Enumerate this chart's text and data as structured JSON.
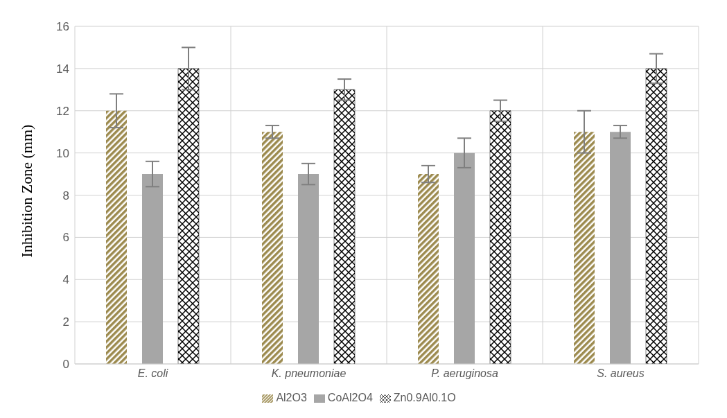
{
  "chart_data": {
    "type": "bar",
    "ylabel": "Inhibition Zone (mm)",
    "categories": [
      "E. coli",
      "K. pneumoniae",
      "P. aeruginosa",
      "S. aureus"
    ],
    "series": [
      {
        "name": "Al2O3",
        "color": "#9c8a4e",
        "values": [
          12,
          11,
          9,
          11
        ],
        "errors": [
          0.8,
          0.3,
          0.4,
          1
        ]
      },
      {
        "name": "CoAl2O4",
        "color": "#a6a6a6",
        "values": [
          9,
          9,
          10,
          11
        ],
        "errors": [
          0.6,
          0.5,
          0.7,
          0.3
        ]
      },
      {
        "name": "Zn0.9Al0.1O",
        "color": "#000000",
        "values": [
          14,
          13,
          12,
          14
        ],
        "errors": [
          1,
          0.5,
          0.5,
          0.7
        ]
      }
    ],
    "ylim": [
      0,
      16
    ],
    "yticks": [
      0,
      2,
      4,
      6,
      8,
      10,
      12,
      14,
      16
    ],
    "grid": true,
    "legend": "bottom"
  }
}
